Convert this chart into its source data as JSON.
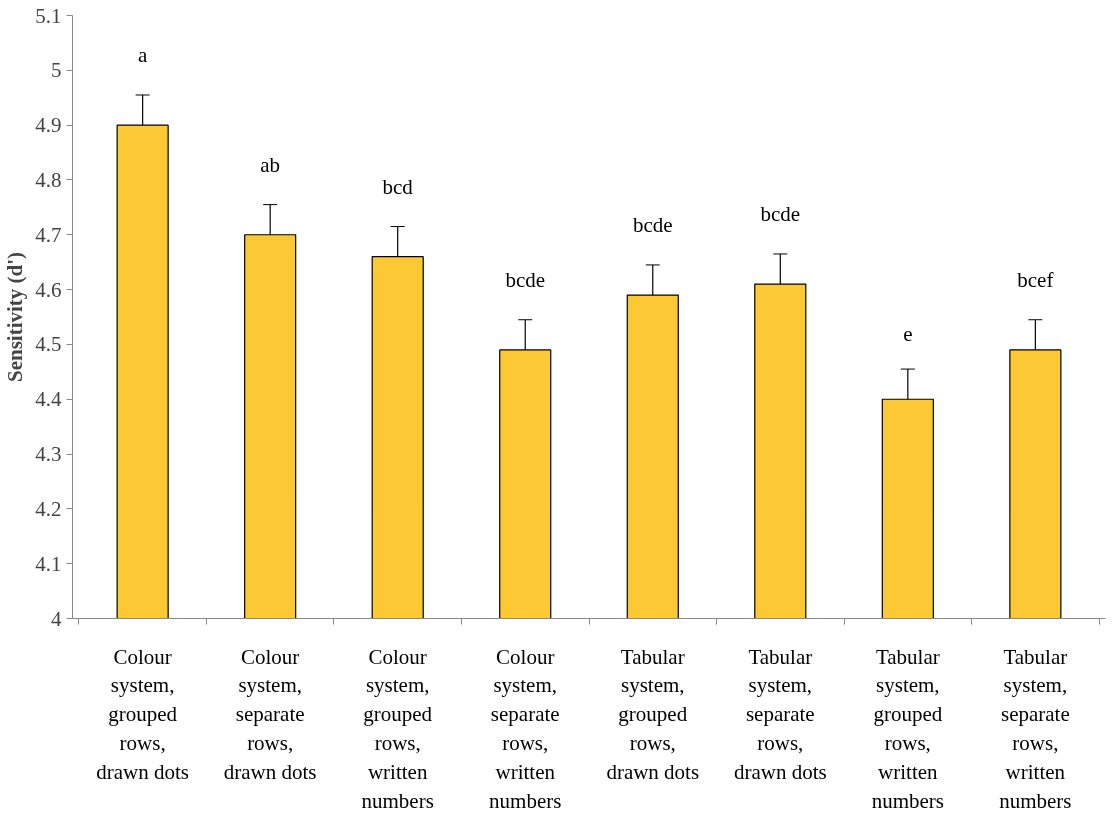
{
  "chart_data": {
    "type": "bar",
    "ylabel": "Sensitivity (d')",
    "categories": [
      "Colour system, grouped rows, drawn dots",
      "Colour system, separate rows, drawn dots",
      "Colour system, grouped rows, written numbers",
      "Colour system, separate rows, written numbers",
      "Tabular system, grouped rows, drawn dots",
      "Tabular system, separate rows, drawn dots",
      "Tabular system, grouped rows, written numbers",
      "Tabular system, separate rows, written numbers"
    ],
    "values": [
      4.9,
      4.7,
      4.66,
      4.49,
      4.59,
      4.61,
      4.4,
      4.49
    ],
    "errors": [
      0.055,
      0.055,
      0.055,
      0.055,
      0.055,
      0.055,
      0.055,
      0.055
    ],
    "color": "#fcc934",
    "ylim": [
      4,
      5.1
    ],
    "yticks": [
      4,
      4.1,
      4.2,
      4.3,
      4.4,
      4.5,
      4.6,
      4.7,
      4.8,
      4.9,
      5,
      5.1
    ],
    "grid": false,
    "annotations": [
      "a",
      "ab",
      "bcd",
      "bcde",
      "bcde",
      "bcde",
      "e",
      "bcef"
    ]
  }
}
